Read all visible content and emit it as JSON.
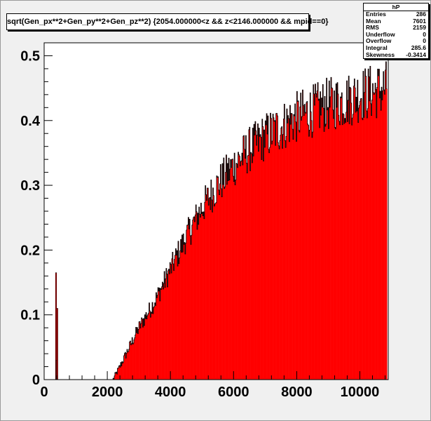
{
  "title": "sqrt(Gen_px**2+Gen_py**2+Gen_pz**2) {2054.000000<z && z<2146.000000 && mpid==0}",
  "stats": {
    "name": "hP",
    "rows": [
      {
        "label": "Entries",
        "value": "286"
      },
      {
        "label": "Mean",
        "value": "7601"
      },
      {
        "label": "RMS",
        "value": "2159"
      },
      {
        "label": "Underflow",
        "value": "0"
      },
      {
        "label": "Overflow",
        "value": "0"
      },
      {
        "label": "Integral",
        "value": "285.6"
      },
      {
        "label": "Skewness",
        "value": "-0.3414"
      }
    ]
  },
  "colors": {
    "fill": "#ff0000",
    "line": "#000000",
    "frame_bg": "#ffffff",
    "canvas_bg": "#f0f0f0"
  },
  "chart_data": {
    "type": "bar",
    "title": "sqrt(Gen_px**2+Gen_py**2+Gen_pz**2) {2054.000000<z && z<2146.000000 && mpid==0}",
    "xlabel": "",
    "ylabel": "",
    "xlim": [
      0,
      10900
    ],
    "ylim": [
      0,
      0.52
    ],
    "x_ticks": [
      "0",
      "2000",
      "4000",
      "6000",
      "8000",
      "10000"
    ],
    "y_ticks": [
      "0",
      "0.1",
      "0.2",
      "0.3",
      "0.4",
      "0.5"
    ],
    "grid": false,
    "legend": "none",
    "histogram_style": "filled red bars with black line outline, noisy",
    "spikes": [
      {
        "x": 360,
        "y": 0.165
      },
      {
        "x": 380,
        "y": 0.03
      },
      {
        "x": 400,
        "y": 0.11
      }
    ],
    "curve": {
      "x": [
        2180,
        2400,
        2700,
        3000,
        3500,
        4000,
        4500,
        5000,
        5500,
        6000,
        6500,
        7000,
        7500,
        8000,
        8500,
        9000,
        9500,
        10000,
        10500,
        10850
      ],
      "y": [
        0.0,
        0.02,
        0.05,
        0.08,
        0.12,
        0.17,
        0.22,
        0.265,
        0.3,
        0.33,
        0.355,
        0.375,
        0.39,
        0.405,
        0.415,
        0.425,
        0.43,
        0.44,
        0.445,
        0.45
      ]
    }
  }
}
